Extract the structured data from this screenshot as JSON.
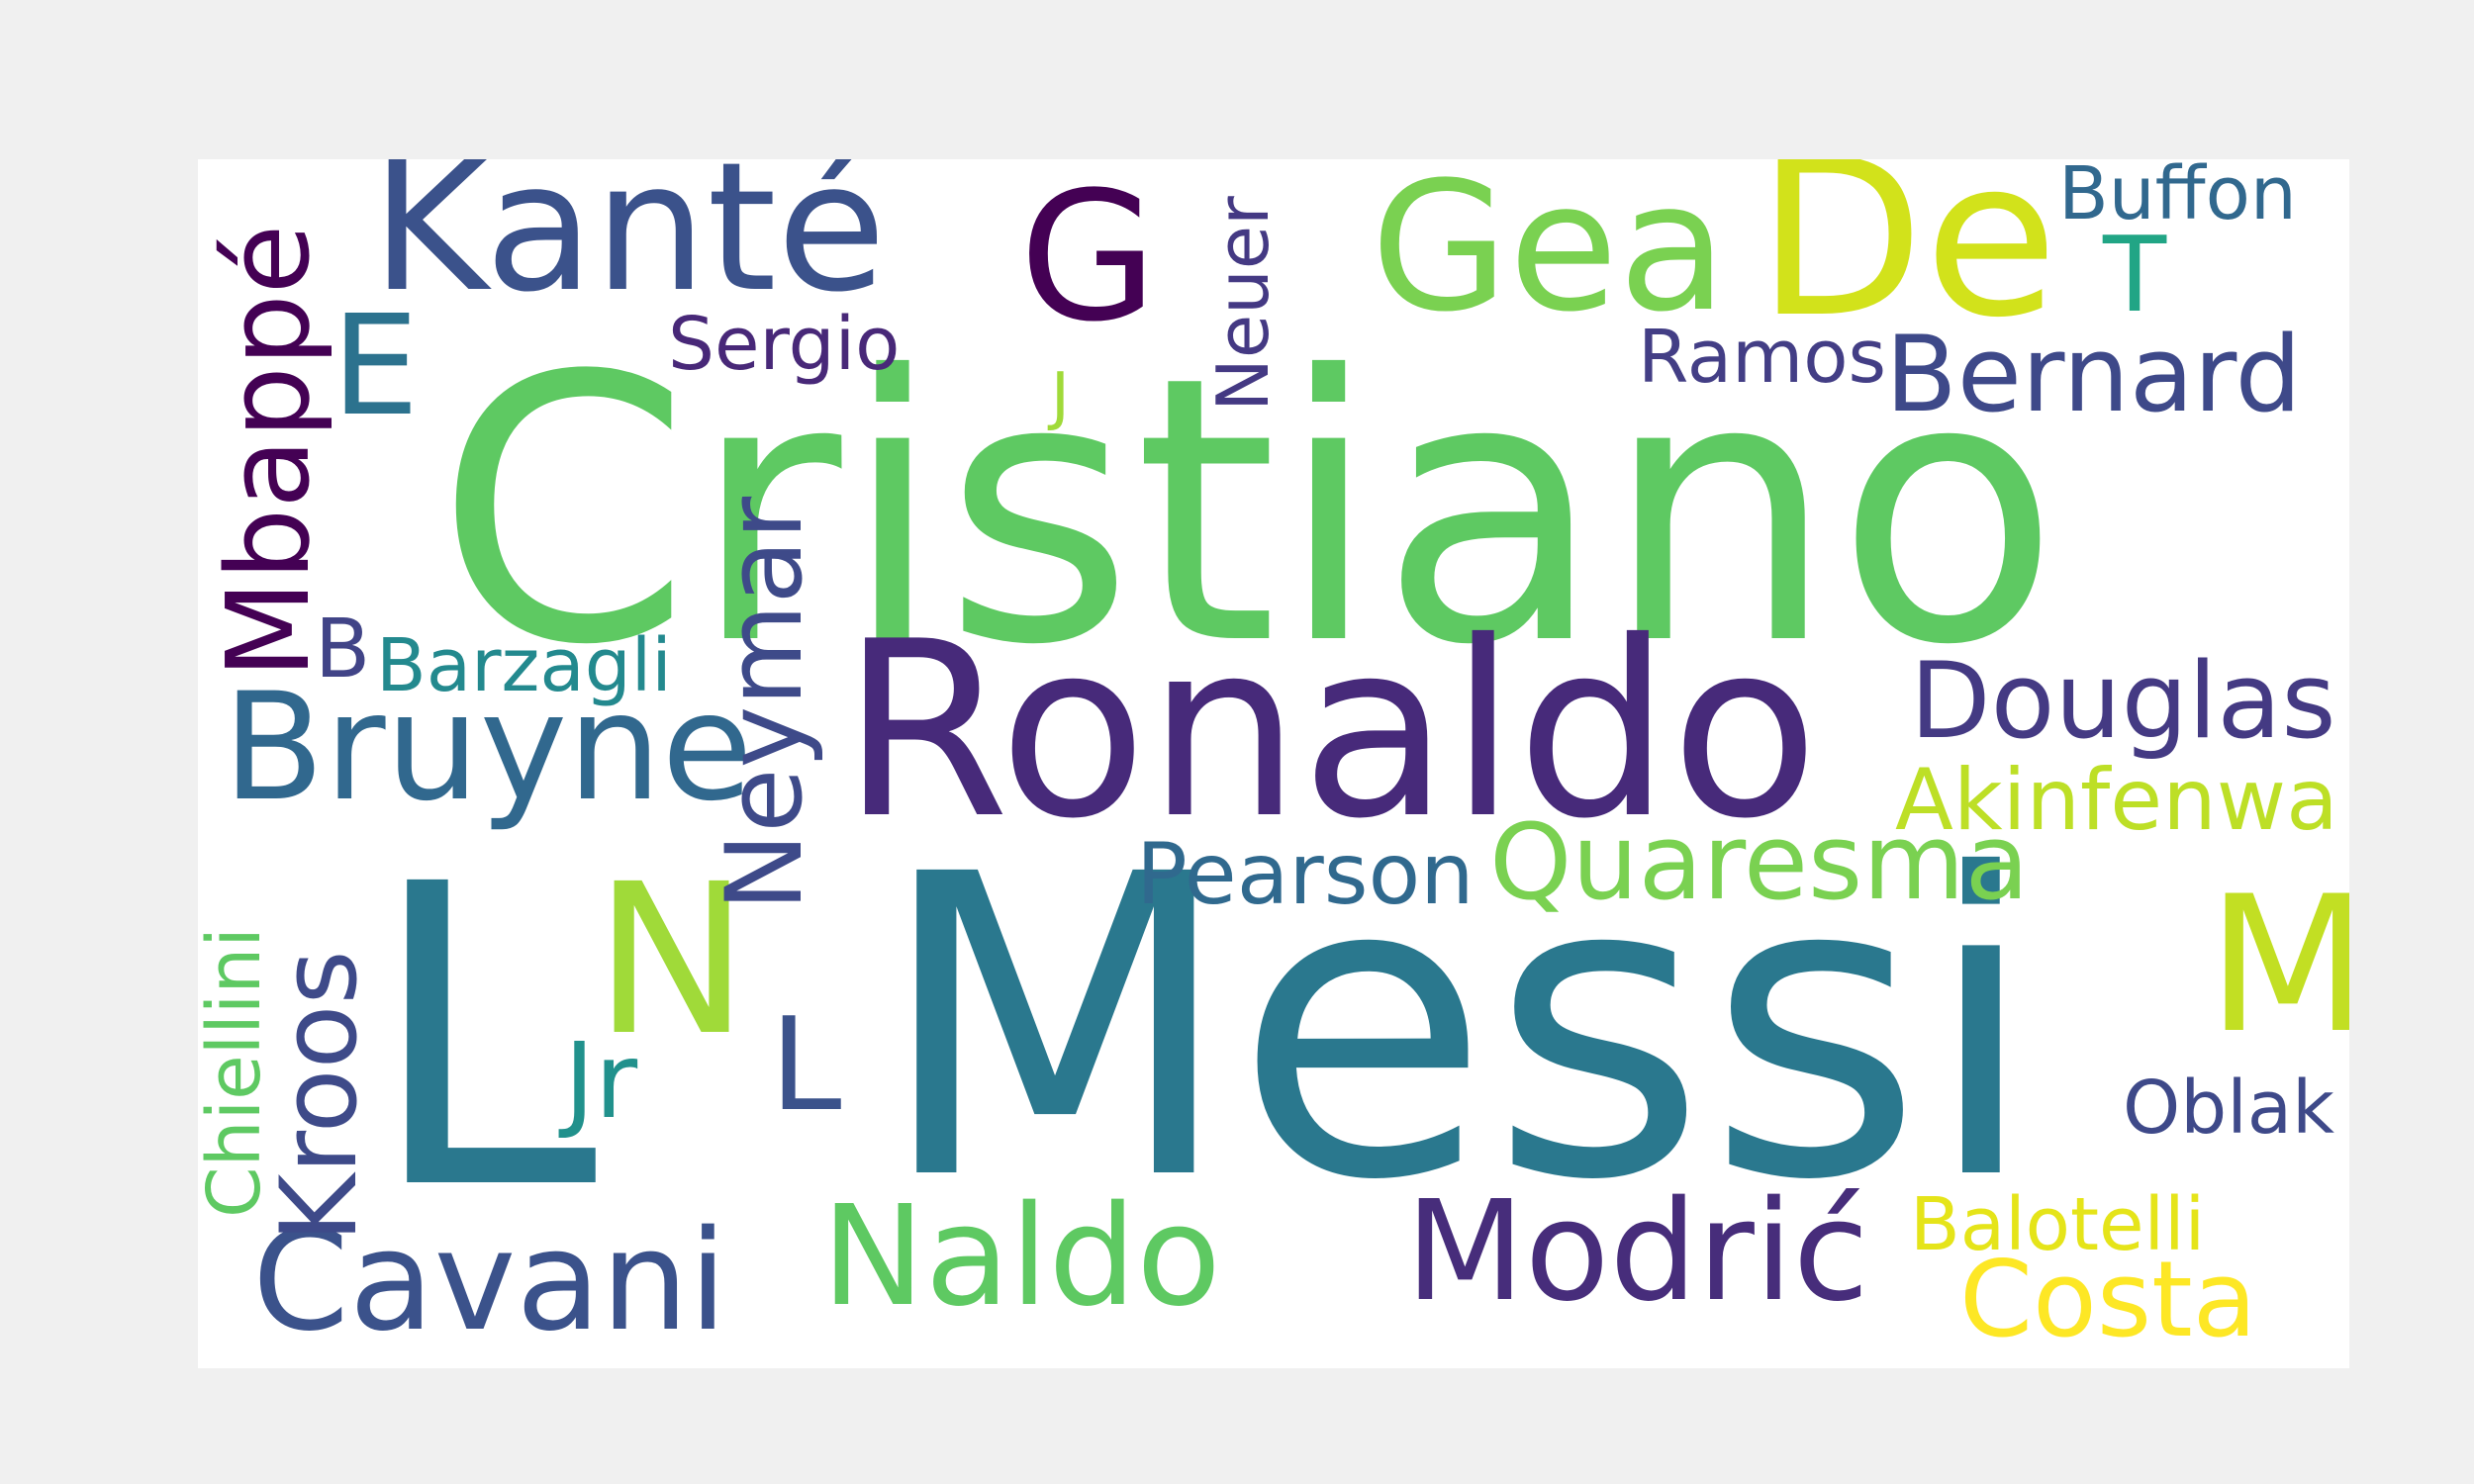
{
  "word_cloud": {
    "words": [
      {
        "text": "Cristiano",
        "color": "#5ec962"
      },
      {
        "text": "Ronaldo",
        "color": "#472a7a"
      },
      {
        "text": "L",
        "color": "#2a788e"
      },
      {
        "text": "Messi",
        "color": "#2a788e"
      },
      {
        "text": "Kanté",
        "color": "#3b528b"
      },
      {
        "text": "G",
        "color": "#440154"
      },
      {
        "text": "Gea",
        "color": "#7ad151"
      },
      {
        "text": "De",
        "color": "#d2e21b"
      },
      {
        "text": "Buffon",
        "color": "#31688e"
      },
      {
        "text": "T",
        "color": "#21a585"
      },
      {
        "text": "E",
        "color": "#2c728e"
      },
      {
        "text": "Sergio",
        "color": "#482878"
      },
      {
        "text": "J",
        "color": "#a0da39"
      },
      {
        "text": "Neuer",
        "color": "#443983"
      },
      {
        "text": "Ramos",
        "color": "#433e85"
      },
      {
        "text": "Bernard",
        "color": "#3e4989"
      },
      {
        "text": "Mbappé",
        "color": "#440154"
      },
      {
        "text": "B",
        "color": "#414487"
      },
      {
        "text": "Barzagli",
        "color": "#23898e"
      },
      {
        "text": "Bruyne",
        "color": "#31688e"
      },
      {
        "text": "Neymar",
        "color": "#3e4a89"
      },
      {
        "text": "Douglas",
        "color": "#443a83"
      },
      {
        "text": "Akinfenwa",
        "color": "#bddf26"
      },
      {
        "text": "Pearson",
        "color": "#30698e"
      },
      {
        "text": "Quaresma",
        "color": "#7ad151"
      },
      {
        "text": "N",
        "color": "#a0da39"
      },
      {
        "text": "M",
        "color": "#c2df23"
      },
      {
        "text": "Chiellini",
        "color": "#5ec962"
      },
      {
        "text": "Kroos",
        "color": "#3e4a89"
      },
      {
        "text": "Jr",
        "color": "#21918c"
      },
      {
        "text": "L",
        "color": "#3b528b"
      },
      {
        "text": "Oblak",
        "color": "#3e4989"
      },
      {
        "text": "Balotelli",
        "color": "#e5e419"
      },
      {
        "text": "Cavani",
        "color": "#3b528b"
      },
      {
        "text": "Naldo",
        "color": "#5ec962"
      },
      {
        "text": "Modrić",
        "color": "#472d7b"
      },
      {
        "text": "Costa",
        "color": "#fde725"
      }
    ]
  }
}
